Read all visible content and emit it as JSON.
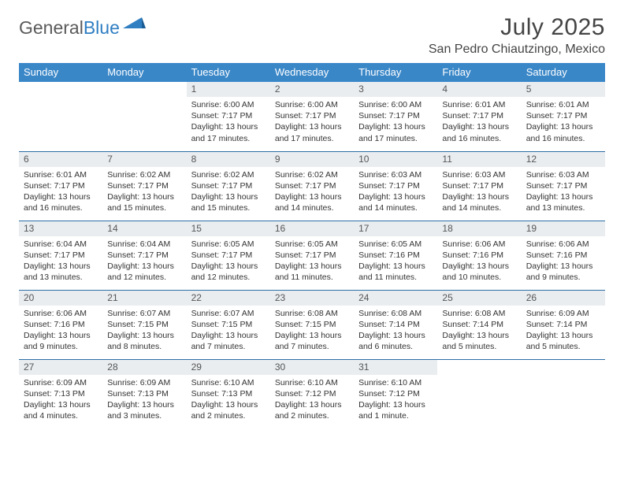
{
  "logo": {
    "word1": "General",
    "word2": "Blue",
    "color1": "#5a5a5a",
    "color2": "#2f7ec2"
  },
  "title": "July 2025",
  "location": "San Pedro Chiautzingo, Mexico",
  "colors": {
    "header_bg": "#3a87c8",
    "header_text": "#ffffff",
    "row_divider": "#2d6ea5",
    "daynum_bg": "#e9edf0",
    "body_text": "#333333",
    "page_bg": "#ffffff"
  },
  "day_names": [
    "Sunday",
    "Monday",
    "Tuesday",
    "Wednesday",
    "Thursday",
    "Friday",
    "Saturday"
  ],
  "weeks": [
    [
      {
        "empty": true
      },
      {
        "empty": true
      },
      {
        "n": "1",
        "sunrise": "6:00 AM",
        "sunset": "7:17 PM",
        "dl": "13 hours and 17 minutes."
      },
      {
        "n": "2",
        "sunrise": "6:00 AM",
        "sunset": "7:17 PM",
        "dl": "13 hours and 17 minutes."
      },
      {
        "n": "3",
        "sunrise": "6:00 AM",
        "sunset": "7:17 PM",
        "dl": "13 hours and 17 minutes."
      },
      {
        "n": "4",
        "sunrise": "6:01 AM",
        "sunset": "7:17 PM",
        "dl": "13 hours and 16 minutes."
      },
      {
        "n": "5",
        "sunrise": "6:01 AM",
        "sunset": "7:17 PM",
        "dl": "13 hours and 16 minutes."
      }
    ],
    [
      {
        "n": "6",
        "sunrise": "6:01 AM",
        "sunset": "7:17 PM",
        "dl": "13 hours and 16 minutes."
      },
      {
        "n": "7",
        "sunrise": "6:02 AM",
        "sunset": "7:17 PM",
        "dl": "13 hours and 15 minutes."
      },
      {
        "n": "8",
        "sunrise": "6:02 AM",
        "sunset": "7:17 PM",
        "dl": "13 hours and 15 minutes."
      },
      {
        "n": "9",
        "sunrise": "6:02 AM",
        "sunset": "7:17 PM",
        "dl": "13 hours and 14 minutes."
      },
      {
        "n": "10",
        "sunrise": "6:03 AM",
        "sunset": "7:17 PM",
        "dl": "13 hours and 14 minutes."
      },
      {
        "n": "11",
        "sunrise": "6:03 AM",
        "sunset": "7:17 PM",
        "dl": "13 hours and 14 minutes."
      },
      {
        "n": "12",
        "sunrise": "6:03 AM",
        "sunset": "7:17 PM",
        "dl": "13 hours and 13 minutes."
      }
    ],
    [
      {
        "n": "13",
        "sunrise": "6:04 AM",
        "sunset": "7:17 PM",
        "dl": "13 hours and 13 minutes."
      },
      {
        "n": "14",
        "sunrise": "6:04 AM",
        "sunset": "7:17 PM",
        "dl": "13 hours and 12 minutes."
      },
      {
        "n": "15",
        "sunrise": "6:05 AM",
        "sunset": "7:17 PM",
        "dl": "13 hours and 12 minutes."
      },
      {
        "n": "16",
        "sunrise": "6:05 AM",
        "sunset": "7:17 PM",
        "dl": "13 hours and 11 minutes."
      },
      {
        "n": "17",
        "sunrise": "6:05 AM",
        "sunset": "7:16 PM",
        "dl": "13 hours and 11 minutes."
      },
      {
        "n": "18",
        "sunrise": "6:06 AM",
        "sunset": "7:16 PM",
        "dl": "13 hours and 10 minutes."
      },
      {
        "n": "19",
        "sunrise": "6:06 AM",
        "sunset": "7:16 PM",
        "dl": "13 hours and 9 minutes."
      }
    ],
    [
      {
        "n": "20",
        "sunrise": "6:06 AM",
        "sunset": "7:16 PM",
        "dl": "13 hours and 9 minutes."
      },
      {
        "n": "21",
        "sunrise": "6:07 AM",
        "sunset": "7:15 PM",
        "dl": "13 hours and 8 minutes."
      },
      {
        "n": "22",
        "sunrise": "6:07 AM",
        "sunset": "7:15 PM",
        "dl": "13 hours and 7 minutes."
      },
      {
        "n": "23",
        "sunrise": "6:08 AM",
        "sunset": "7:15 PM",
        "dl": "13 hours and 7 minutes."
      },
      {
        "n": "24",
        "sunrise": "6:08 AM",
        "sunset": "7:14 PM",
        "dl": "13 hours and 6 minutes."
      },
      {
        "n": "25",
        "sunrise": "6:08 AM",
        "sunset": "7:14 PM",
        "dl": "13 hours and 5 minutes."
      },
      {
        "n": "26",
        "sunrise": "6:09 AM",
        "sunset": "7:14 PM",
        "dl": "13 hours and 5 minutes."
      }
    ],
    [
      {
        "n": "27",
        "sunrise": "6:09 AM",
        "sunset": "7:13 PM",
        "dl": "13 hours and 4 minutes."
      },
      {
        "n": "28",
        "sunrise": "6:09 AM",
        "sunset": "7:13 PM",
        "dl": "13 hours and 3 minutes."
      },
      {
        "n": "29",
        "sunrise": "6:10 AM",
        "sunset": "7:13 PM",
        "dl": "13 hours and 2 minutes."
      },
      {
        "n": "30",
        "sunrise": "6:10 AM",
        "sunset": "7:12 PM",
        "dl": "13 hours and 2 minutes."
      },
      {
        "n": "31",
        "sunrise": "6:10 AM",
        "sunset": "7:12 PM",
        "dl": "13 hours and 1 minute."
      },
      {
        "empty": true
      },
      {
        "empty": true
      }
    ]
  ],
  "labels": {
    "sunrise": "Sunrise: ",
    "sunset": "Sunset: ",
    "daylight": "Daylight: "
  }
}
